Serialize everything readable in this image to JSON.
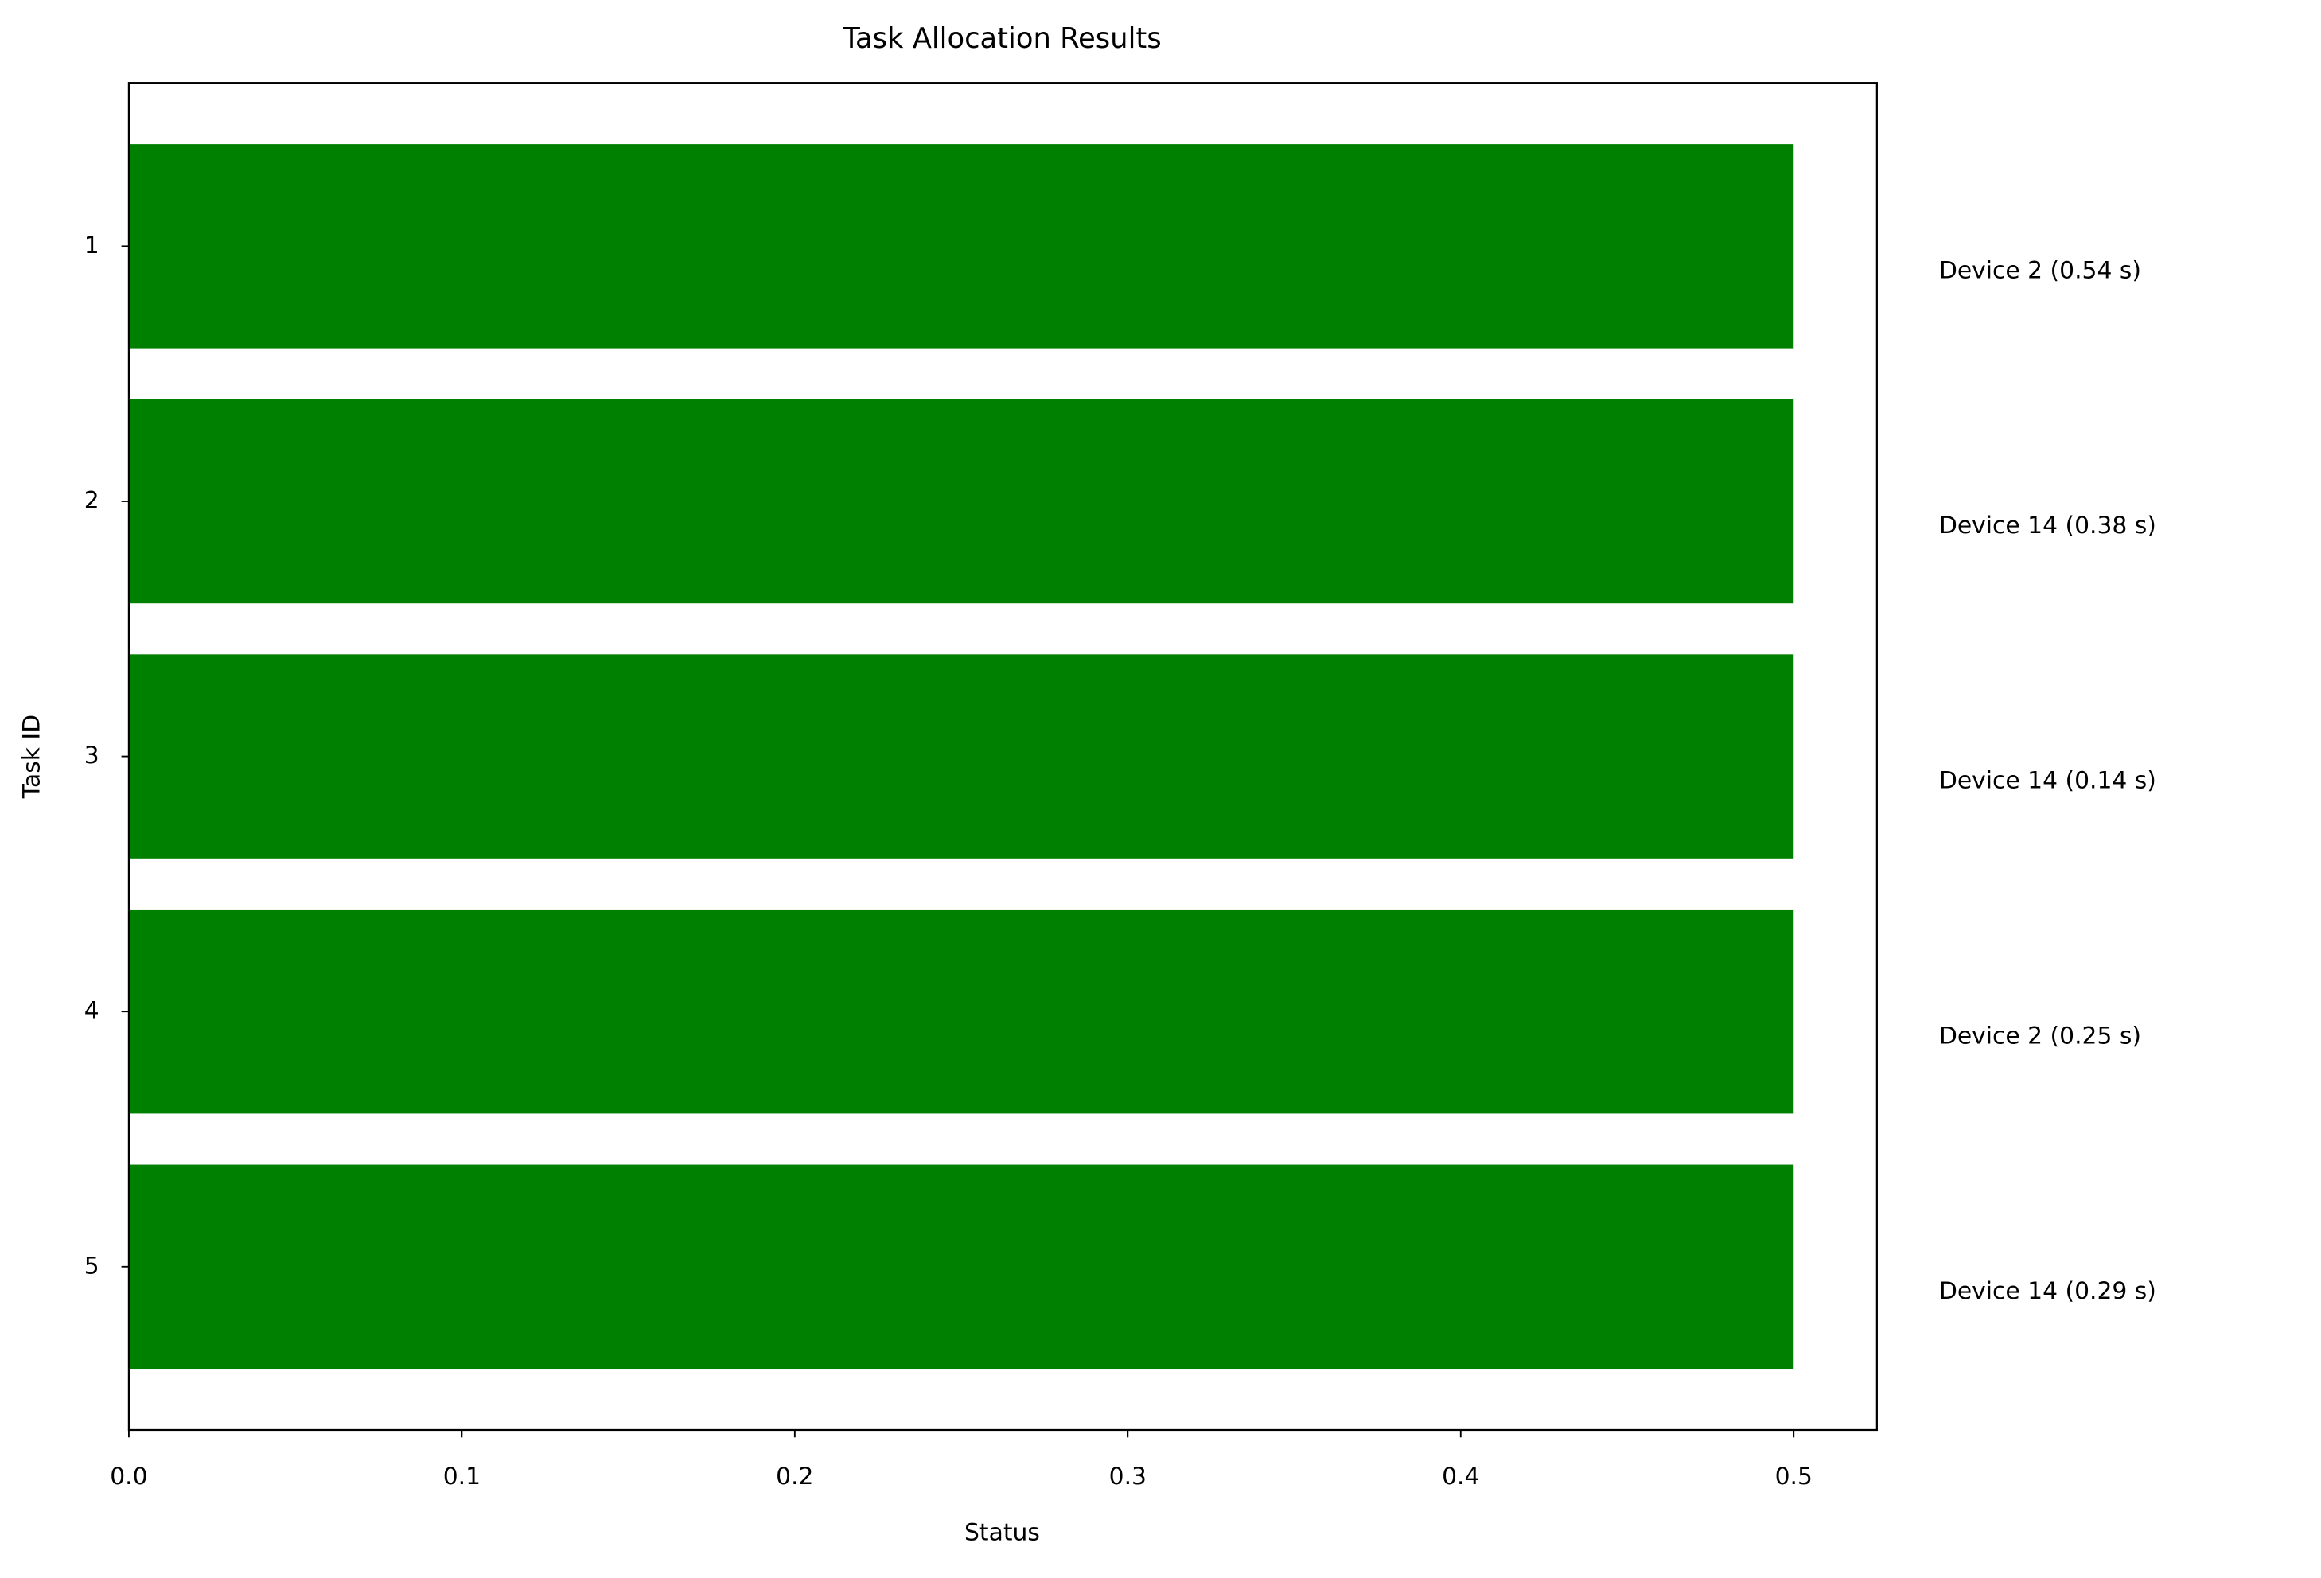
{
  "chart_data": {
    "type": "barh",
    "title": "Task Allocation Results",
    "x_label": "Status",
    "y_label": "Task ID",
    "categories": [
      "1",
      "2",
      "3",
      "4",
      "5"
    ],
    "values": [
      0.5,
      0.5,
      0.5,
      0.5,
      0.5
    ],
    "color": "#008000",
    "annotations": [
      "Device 2 (0.54 s)",
      "Device 14 (0.38 s)",
      "Device 14 (0.14 s)",
      "Device 2 (0.25 s)",
      "Device 14 (0.29 s)"
    ],
    "xlim": [
      0,
      0.525
    ],
    "xticks": [
      {
        "value": 0,
        "label": "0.0"
      },
      0.1,
      0.2,
      0.3,
      0.4,
      0.5
    ],
    "grid": false
  }
}
